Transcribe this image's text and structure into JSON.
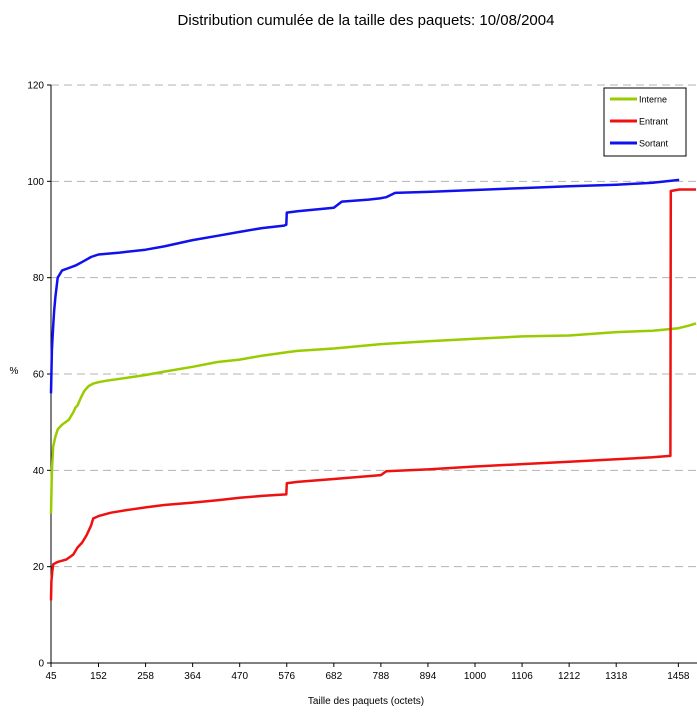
{
  "chart_data": {
    "type": "line",
    "title": "Distribution cumulée de la taille des paquets: 10/08/2004",
    "xlabel": "Taille des paquets (octets)",
    "ylabel": "%",
    "xlim": [
      45,
      1500
    ],
    "ylim": [
      0,
      120
    ],
    "xticks": [
      45,
      152,
      258,
      364,
      470,
      576,
      682,
      788,
      894,
      1000,
      1106,
      1212,
      1318,
      1458
    ],
    "yticks": [
      0,
      20,
      40,
      60,
      80,
      100,
      120
    ],
    "grid": "horizontal-dashed",
    "legend_position": "top-right",
    "series": [
      {
        "name": "Interne",
        "color": "#99cc00",
        "x": [
          45,
          47,
          50,
          55,
          60,
          70,
          85,
          95,
          100,
          105,
          112,
          120,
          130,
          140,
          152,
          170,
          200,
          258,
          300,
          364,
          420,
          470,
          520,
          576,
          600,
          682,
          788,
          894,
          1000,
          1106,
          1212,
          1318,
          1400,
          1458,
          1480,
          1500
        ],
        "y": [
          31,
          40,
          45,
          47,
          48.5,
          49.5,
          50.5,
          52,
          53,
          53.5,
          55,
          56.5,
          57.5,
          58,
          58.3,
          58.6,
          59,
          59.8,
          60.5,
          61.5,
          62.5,
          63,
          63.8,
          64.5,
          64.8,
          65.3,
          66.2,
          66.8,
          67.3,
          67.8,
          68,
          68.7,
          69,
          69.5,
          70,
          70.5
        ]
      },
      {
        "name": "Entrant",
        "color": "#ee1111",
        "x": [
          45,
          46,
          48,
          50,
          60,
          80,
          95,
          105,
          115,
          125,
          135,
          140,
          152,
          180,
          220,
          258,
          300,
          364,
          420,
          470,
          520,
          575,
          576,
          600,
          682,
          788,
          800,
          894,
          1000,
          1106,
          1212,
          1318,
          1400,
          1440,
          1441,
          1460,
          1500
        ],
        "y": [
          13,
          17,
          19,
          20.5,
          21,
          21.5,
          22.5,
          24,
          25,
          26.5,
          28.5,
          30,
          30.5,
          31.2,
          31.8,
          32.3,
          32.8,
          33.3,
          33.8,
          34.3,
          34.7,
          35,
          37.3,
          37.6,
          38.2,
          39,
          39.8,
          40.2,
          40.8,
          41.3,
          41.8,
          42.3,
          42.7,
          43,
          98,
          98.3,
          98.3
        ]
      },
      {
        "name": "Sortant",
        "color": "#1111ee",
        "x": [
          45,
          47,
          50,
          52,
          55,
          60,
          70,
          85,
          100,
          120,
          135,
          152,
          200,
          258,
          300,
          364,
          420,
          470,
          520,
          570,
          575,
          576,
          600,
          682,
          700,
          760,
          788,
          800,
          820,
          894,
          1000,
          1106,
          1212,
          1318,
          1400,
          1460
        ],
        "y": [
          56,
          65,
          70,
          73,
          76,
          80,
          81.5,
          82,
          82.5,
          83.5,
          84.3,
          84.8,
          85.2,
          85.8,
          86.5,
          87.8,
          88.7,
          89.5,
          90.3,
          90.8,
          91,
          93.5,
          93.8,
          94.5,
          95.8,
          96.2,
          96.5,
          96.7,
          97.6,
          97.8,
          98.2,
          98.6,
          99,
          99.3,
          99.7,
          100.3
        ]
      }
    ]
  }
}
